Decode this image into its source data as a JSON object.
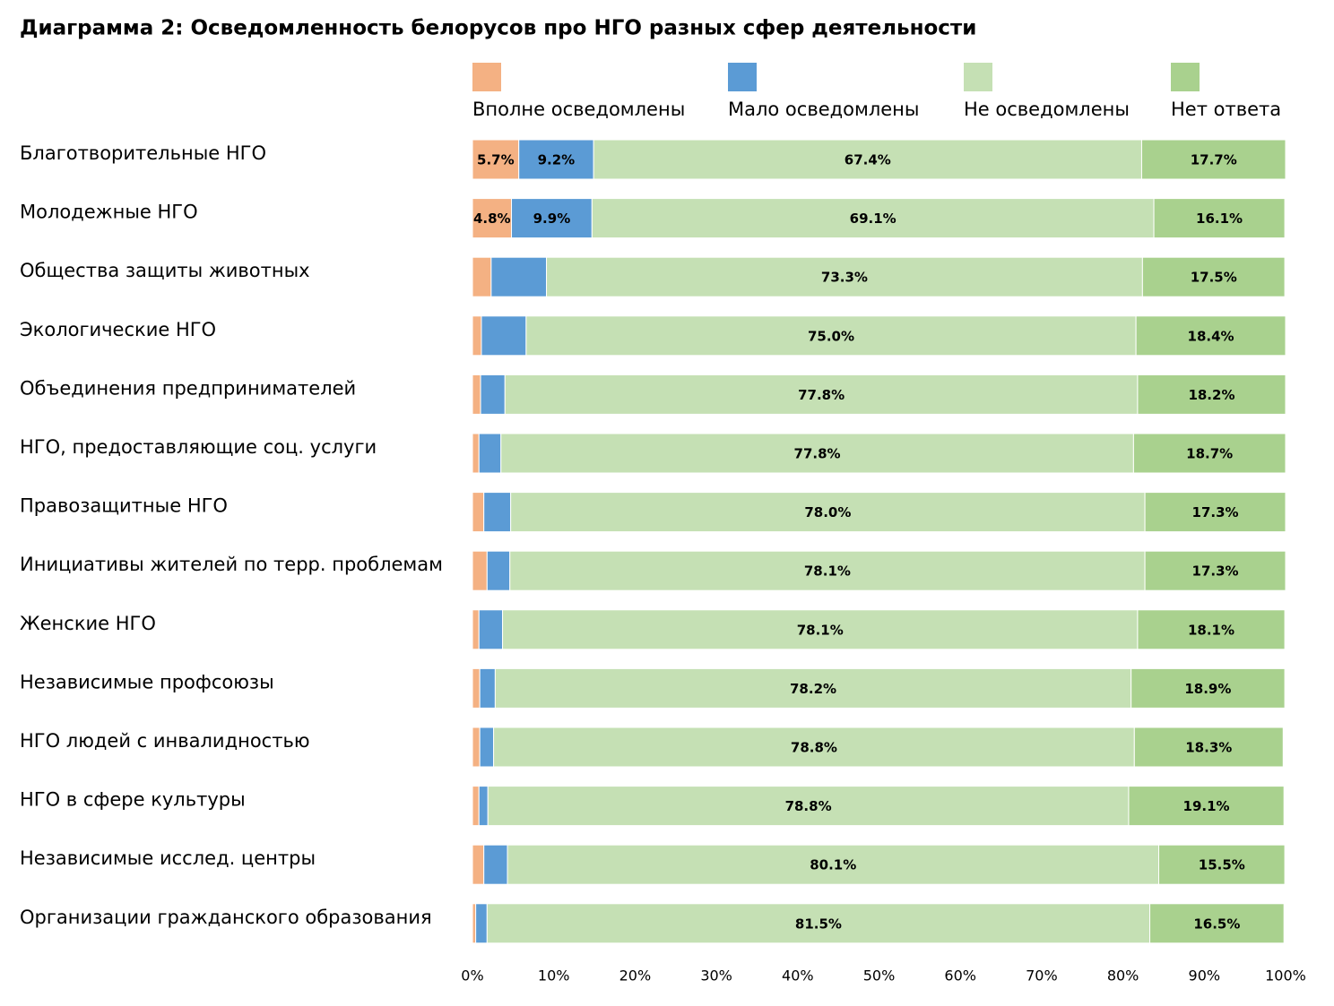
{
  "chart_data": {
    "type": "stacked-barh",
    "title": "Диаграмма 2: Осведомленность белорусов про НГО разных сфер деятельности",
    "categories": [
      "Благотворительные НГО",
      "Молодежные НГО",
      "Общества защиты животных",
      "Экологические НГО",
      "Объединения предпринимателей",
      "НГО, предоставляющие соц. услуги",
      "Правозащитные НГО",
      "Инициативы жителей по терр. проблемам",
      "Женские НГО",
      "Независимые профсоюзы",
      "НГО людей с инвалидностью",
      "НГО в сфере культуры",
      "Независимые исслед. центры",
      "Организации гражданского образования"
    ],
    "series": [
      {
        "name": "Вполне осведомлены",
        "color": "#f4b183",
        "values": [
          5.7,
          4.8,
          2.3,
          1.1,
          1.0,
          0.8,
          1.4,
          1.8,
          0.8,
          0.9,
          0.9,
          0.8,
          1.4,
          0.4
        ],
        "value_labels": [
          "5.7%",
          "4.8%",
          null,
          null,
          null,
          null,
          null,
          null,
          null,
          null,
          null,
          null,
          null,
          null
        ]
      },
      {
        "name": "Мало осведомлены",
        "color": "#5b9bd5",
        "values": [
          9.2,
          9.9,
          6.8,
          5.5,
          3.0,
          2.7,
          3.3,
          2.8,
          2.9,
          1.9,
          1.7,
          1.1,
          2.9,
          1.4
        ],
        "value_labels": [
          "9.2%",
          "9.9%",
          null,
          null,
          null,
          null,
          null,
          null,
          null,
          null,
          null,
          null,
          null,
          null
        ]
      },
      {
        "name": "Не осведомлены",
        "color": "#c5e0b4",
        "values": [
          67.4,
          69.1,
          73.3,
          75.0,
          77.8,
          77.8,
          78.0,
          78.1,
          78.1,
          78.2,
          78.8,
          78.8,
          80.1,
          81.5
        ],
        "value_labels": [
          "67.4%",
          "69.1%",
          "73.3%",
          "75.0%",
          "77.8%",
          "77.8%",
          "78.0%",
          "78.1%",
          "78.1%",
          "78.2%",
          "78.8%",
          "78.8%",
          "80.1%",
          "81.5%"
        ]
      },
      {
        "name": "Нет ответа",
        "color": "#a9d18e",
        "values": [
          17.7,
          16.1,
          17.5,
          18.4,
          18.2,
          18.7,
          17.3,
          17.3,
          18.1,
          18.9,
          18.3,
          19.1,
          15.5,
          16.5
        ],
        "value_labels": [
          "17.7%",
          "16.1%",
          "17.5%",
          "18.4%",
          "18.2%",
          "18.7%",
          "17.3%",
          "17.3%",
          "18.1%",
          "18.9%",
          "18.3%",
          "19.1%",
          "15.5%",
          "16.5%"
        ]
      }
    ],
    "xlim": [
      0,
      100
    ],
    "xticks": [
      {
        "value": 0,
        "label": "0%"
      },
      {
        "value": 10,
        "label": "10%"
      },
      {
        "value": 20,
        "label": "20%"
      },
      {
        "value": 30,
        "label": "30%"
      },
      {
        "value": 40,
        "label": "40%"
      },
      {
        "value": 50,
        "label": "50%"
      },
      {
        "value": 60,
        "label": "60%"
      },
      {
        "value": 70,
        "label": "70%"
      },
      {
        "value": 80,
        "label": "80%"
      },
      {
        "value": 90,
        "label": "90%"
      },
      {
        "value": 100,
        "label": "100%"
      }
    ],
    "legend": "top"
  }
}
